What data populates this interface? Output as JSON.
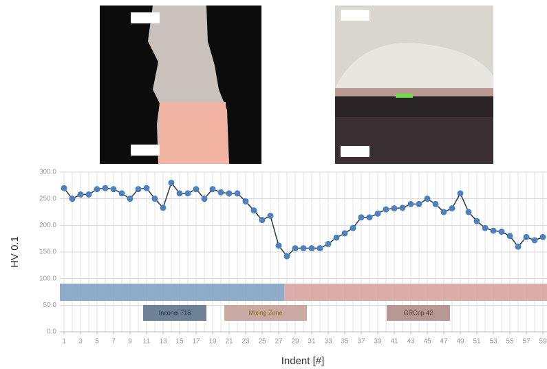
{
  "chart_data": {
    "type": "line",
    "y_label": "HV 0.1",
    "x_label": "Indent [#]",
    "x": [
      1,
      2,
      3,
      4,
      5,
      6,
      7,
      8,
      9,
      10,
      11,
      12,
      13,
      14,
      15,
      16,
      17,
      18,
      19,
      20,
      21,
      22,
      23,
      24,
      25,
      26,
      27,
      28,
      29,
      30,
      31,
      32,
      33,
      34,
      35,
      36,
      37,
      38,
      39,
      40,
      41,
      42,
      43,
      44,
      45,
      46,
      47,
      48,
      49,
      50,
      51,
      52,
      53,
      54,
      55,
      56,
      57,
      58,
      59
    ],
    "series": [
      {
        "name": "HV 0.1",
        "color": "#4f81bd",
        "values": [
          270,
          250,
          258,
          258,
          268,
          270,
          268,
          260,
          250,
          268,
          270,
          250,
          233,
          280,
          260,
          260,
          268,
          250,
          268,
          262,
          260,
          260,
          245,
          228,
          210,
          218,
          162,
          142,
          157,
          157,
          157,
          157,
          165,
          177,
          185,
          195,
          215,
          215,
          222,
          230,
          232,
          233,
          240,
          240,
          250,
          240,
          225,
          232,
          260,
          225,
          208,
          195,
          190,
          188,
          180,
          160,
          178,
          172,
          178
        ]
      }
    ],
    "xlim": [
      0.5,
      59.5
    ],
    "xticks": [
      1,
      3,
      5,
      7,
      9,
      11,
      13,
      15,
      17,
      19,
      21,
      23,
      25,
      27,
      29,
      31,
      33,
      35,
      37,
      39,
      41,
      43,
      45,
      47,
      49,
      51,
      53,
      55,
      57,
      59
    ],
    "ylim": [
      0,
      300
    ],
    "yticks": [
      {
        "value": 0,
        "label": "0.0"
      },
      {
        "value": 50,
        "label": "50.0"
      },
      {
        "value": 100,
        "label": "100.0"
      },
      {
        "value": 150,
        "label": "150.0"
      },
      {
        "value": 200,
        "label": "200.0"
      },
      {
        "value": 250,
        "label": "250.0"
      },
      {
        "value": 300,
        "label": "300.0"
      }
    ],
    "grid": true,
    "annotations": [
      "Inconel 718",
      "Mixing Zone",
      "GRCop 42"
    ]
  }
}
